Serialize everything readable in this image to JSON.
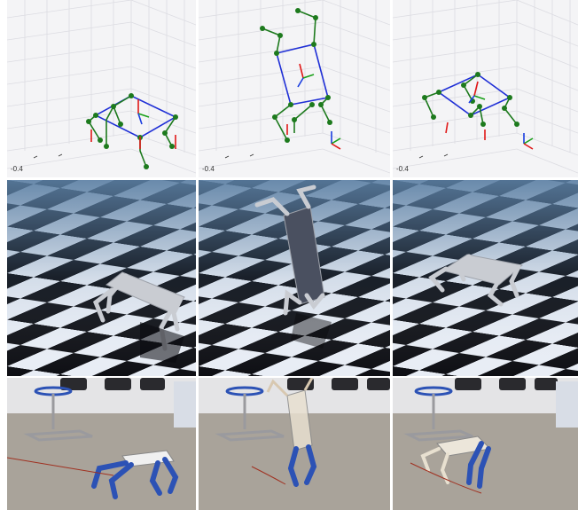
{
  "plots": [
    {
      "tick_label": "-0.4",
      "pose": "standing"
    },
    {
      "tick_label": "-0.4",
      "pose": "upright"
    },
    {
      "tick_label": "-0.4",
      "pose": "standing"
    }
  ],
  "colors": {
    "grid_bg": "#f4f4f6",
    "grid_line": "#dcdce2",
    "link": "#1f2fd6",
    "joint": "#1d7a1d",
    "axis_x": "#e01818",
    "axis_y": "#18a018",
    "axis_z": "#1a3de0",
    "sim_sky": "#5b7fa3",
    "sim_tile_dark": "#0e0f14",
    "sim_tile_light": "#e8edf5",
    "robot_sim": "#c9ccd2",
    "lab_floor": "#a9a39a",
    "lab_wall": "#e4e4e6",
    "robot_leg_real": "#2c52b5"
  }
}
